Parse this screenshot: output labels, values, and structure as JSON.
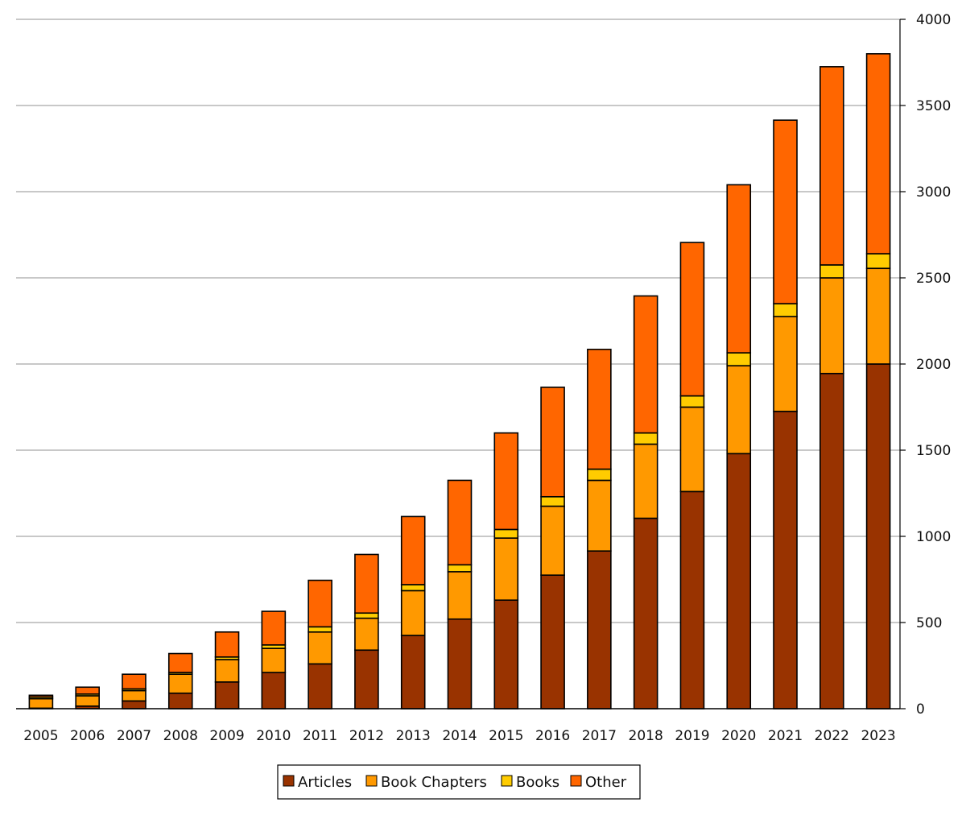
{
  "chart_data": {
    "type": "bar",
    "stacked": true,
    "title": "",
    "xlabel": "",
    "ylabel": "",
    "ylim": [
      0,
      4000
    ],
    "yticks": [
      0,
      500,
      1000,
      1500,
      2000,
      2500,
      3000,
      3500,
      4000
    ],
    "y_axis_side": "right",
    "grid": true,
    "legend_position": "bottom-center",
    "categories": [
      "2005",
      "2006",
      "2007",
      "2008",
      "2009",
      "2010",
      "2011",
      "2012",
      "2013",
      "2014",
      "2015",
      "2016",
      "2017",
      "2018",
      "2019",
      "2020",
      "2021",
      "2022",
      "2023"
    ],
    "series": [
      {
        "name": "Articles",
        "color": "#993300",
        "values": [
          3,
          15,
          45,
          90,
          155,
          210,
          260,
          340,
          425,
          520,
          630,
          775,
          915,
          1105,
          1260,
          1480,
          1725,
          1945,
          2000
        ]
      },
      {
        "name": "Book Chapters",
        "color": "#ff9900",
        "values": [
          55,
          60,
          60,
          110,
          130,
          140,
          185,
          185,
          260,
          275,
          360,
          400,
          410,
          430,
          490,
          510,
          550,
          555,
          555
        ]
      },
      {
        "name": "Books",
        "color": "#ffcc00",
        "values": [
          10,
          10,
          10,
          10,
          15,
          20,
          30,
          30,
          35,
          40,
          50,
          55,
          65,
          65,
          65,
          75,
          75,
          75,
          85
        ]
      },
      {
        "name": "Other",
        "color": "#ff6600",
        "values": [
          10,
          40,
          85,
          110,
          145,
          195,
          270,
          340,
          395,
          490,
          560,
          635,
          695,
          795,
          890,
          975,
          1065,
          1150,
          1160
        ]
      }
    ]
  }
}
